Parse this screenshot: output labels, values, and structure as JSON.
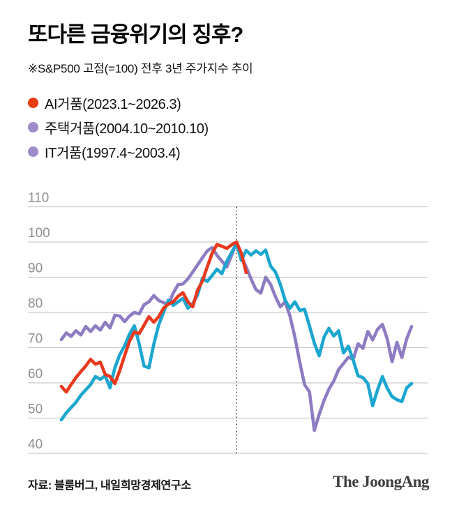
{
  "header": {
    "title": "또다른 금융위기의 징후?",
    "subtitle": "※S&P500 고점(=100) 전후 3년 주가지수 추이"
  },
  "legend": [
    {
      "label": "AI거품(2023.1~2026.3)",
      "color": "#ea3a10"
    },
    {
      "label": "주택거품(2004.10~2010.10)",
      "color": "#9d8bca"
    },
    {
      "label": "IT거품(1997.4~2003.4)",
      "color": "#9d8bca"
    }
  ],
  "footer": {
    "source": "자료: 블룸버그, 내일희망경제연구소",
    "logo": "The JoongAng"
  },
  "chart_data": {
    "type": "line",
    "title": "S&P500 고점(=100) 전후 3년 주가지수 추이",
    "xlabel": "",
    "ylabel": "",
    "grid": true,
    "gridline_color": "#c9c9c9",
    "tick_label_color": "#8f8f8f",
    "peak_line_color": "#5a5a5a",
    "y_axis": {
      "ticks": [
        110,
        100,
        90,
        80,
        70,
        60,
        50,
        40
      ],
      "range": [
        40,
        110
      ]
    },
    "x_axis": {
      "unit": "months relative to peak",
      "months_span": 73,
      "peak_index": 36
    },
    "series": [
      {
        "name": "IT거품(1997.4~2003.4)",
        "color": "#8d7cc2",
        "values": [
          72.3,
          74.2,
          73.2,
          74.8,
          73.6,
          76.0,
          74.6,
          76.2,
          75.0,
          77.2,
          75.6,
          79.2,
          79.0,
          77.4,
          79.0,
          80.0,
          79.6,
          82.2,
          83.0,
          84.8,
          83.4,
          82.8,
          82.2,
          85.5,
          87.9,
          88.1,
          89.5,
          91.5,
          93.5,
          95.5,
          97.5,
          98.4,
          96.2,
          94.6,
          92.9,
          96.2,
          100.0,
          95.8,
          92.9,
          89.5,
          86.5,
          85.5,
          90.0,
          88.0,
          84.5,
          81.6,
          83.0,
          79.0,
          73.0,
          66.0,
          59.5,
          57.5,
          46.5,
          51.0,
          55.0,
          58.2,
          60.5,
          63.8,
          65.5,
          67.3,
          66.7,
          71.1,
          69.8,
          74.6,
          72.2,
          75.2,
          76.6,
          72.5,
          66.0,
          71.5,
          67.2,
          72.5,
          76.0
        ]
      },
      {
        "name": "주택거품(2004.10~2010.10)",
        "color": "#1ba6cf",
        "values": [
          49.5,
          51.5,
          53.0,
          54.5,
          56.5,
          58.0,
          59.5,
          61.8,
          61.0,
          62.0,
          58.6,
          64.3,
          68.0,
          70.5,
          73.8,
          76.2,
          71.0,
          64.8,
          64.3,
          71.0,
          76.4,
          80.0,
          83.5,
          82.0,
          83.0,
          84.0,
          81.2,
          82.5,
          85.0,
          89.7,
          88.8,
          90.5,
          92.3,
          91.0,
          94.5,
          97.0,
          99.6,
          94.8,
          97.6,
          96.3,
          97.5,
          96.5,
          97.7,
          93.2,
          91.5,
          88.0,
          83.5,
          81.2,
          83.0,
          80.6,
          80.9,
          76.2,
          71.3,
          67.7,
          73.0,
          75.5,
          73.3,
          74.8,
          68.5,
          70.4,
          66.5,
          62.0,
          61.5,
          59.8,
          53.5,
          58.0,
          61.8,
          58.5,
          56.1,
          55.2,
          54.7,
          58.6,
          59.8
        ]
      },
      {
        "name": "AI거품(2023.1~2026.3)",
        "color": "#e8391d",
        "values": [
          59.0,
          57.4,
          59.5,
          61.5,
          63.2,
          64.8,
          66.7,
          65.3,
          65.9,
          62.4,
          61.8,
          59.8,
          63.5,
          67.7,
          71.8,
          74.5,
          74.0,
          76.4,
          78.8,
          77.2,
          78.8,
          81.2,
          82.4,
          83.0,
          84.6,
          85.6,
          83.0,
          81.6,
          86.3,
          88.9,
          93.0,
          96.8,
          99.3,
          98.8,
          98.2,
          99.2,
          100.0,
          96.8,
          91.3
        ]
      }
    ]
  }
}
